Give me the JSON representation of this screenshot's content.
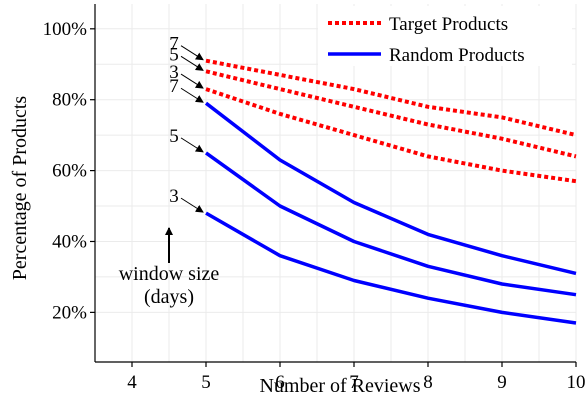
{
  "chart_data": {
    "type": "line",
    "xlabel": "Number of Reviews",
    "ylabel": "Percentage of Products",
    "x_ticks": [
      4,
      5,
      6,
      7,
      8,
      9,
      10
    ],
    "y_ticks": [
      "20%",
      "40%",
      "60%",
      "80%",
      "100%"
    ],
    "y_tick_values": [
      20,
      40,
      60,
      80,
      100
    ],
    "xlim": [
      3.5,
      10
    ],
    "ylim": [
      6,
      107
    ],
    "grid": true,
    "legend_position": "top-right",
    "legend": [
      {
        "label": "Target Products",
        "style": "dotted",
        "color": "#ff0000"
      },
      {
        "label": "Random Products",
        "style": "solid",
        "color": "#0000ff"
      }
    ],
    "series": [
      {
        "group": "Target Products",
        "window": "7",
        "x": [
          5,
          6,
          7,
          8,
          9,
          10
        ],
        "y": [
          91,
          87,
          83,
          78,
          75,
          70
        ]
      },
      {
        "group": "Target Products",
        "window": "5",
        "x": [
          5,
          6,
          7,
          8,
          9,
          10
        ],
        "y": [
          88,
          83,
          78,
          73,
          69,
          64
        ]
      },
      {
        "group": "Target Products",
        "window": "3",
        "x": [
          5,
          6,
          7,
          8,
          9,
          10
        ],
        "y": [
          83,
          76,
          70,
          64,
          60,
          57
        ]
      },
      {
        "group": "Random Products",
        "window": "7",
        "x": [
          5,
          6,
          7,
          8,
          9,
          10
        ],
        "y": [
          79,
          63,
          51,
          42,
          36,
          31
        ]
      },
      {
        "group": "Random Products",
        "window": "5",
        "x": [
          5,
          6,
          7,
          8,
          9,
          10
        ],
        "y": [
          65,
          50,
          40,
          33,
          28,
          25
        ]
      },
      {
        "group": "Random Products",
        "window": "3",
        "x": [
          5,
          6,
          7,
          8,
          9,
          10
        ],
        "y": [
          48,
          36,
          29,
          24,
          20,
          17
        ]
      }
    ],
    "annotations": {
      "window_labels": [
        "7",
        "5",
        "3",
        "7",
        "5",
        "3"
      ],
      "window_size_label": [
        "window size",
        "(days)"
      ]
    }
  }
}
